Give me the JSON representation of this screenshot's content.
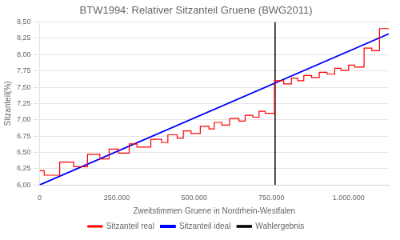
{
  "chart_data": {
    "type": "line",
    "title": "BTW1994: Relativer Sitzanteil Gruene (BWG2011)",
    "xlabel": "Zweitstimmen Gruene in Nordrhein-Westfalen",
    "ylabel": "Sitzanteil(%)",
    "xlim": [
      0,
      1130000
    ],
    "ylim": [
      6.0,
      8.5
    ],
    "xticks": [
      0,
      {
        "value": 250000,
        "label": "250.000"
      },
      {
        "value": 500000,
        "label": "500.000"
      },
      {
        "value": 750000,
        "label": "750.000"
      },
      {
        "value": 1000000,
        "label": "1.000.000"
      }
    ],
    "yticks": [
      {
        "value": 6.0,
        "label": "6,00"
      },
      {
        "value": 6.25,
        "label": "6,25"
      },
      {
        "value": 6.5,
        "label": "6,50"
      },
      {
        "value": 6.75,
        "label": "6,75"
      },
      {
        "value": 7.0,
        "label": "7,00"
      },
      {
        "value": 7.25,
        "label": "7,25"
      },
      {
        "value": 7.5,
        "label": "7,50"
      },
      {
        "value": 7.75,
        "label": "7,75"
      },
      {
        "value": 8.0,
        "label": "8,00"
      },
      {
        "value": 8.25,
        "label": "8,25"
      },
      {
        "value": 8.5,
        "label": "8,50"
      }
    ],
    "grid": "y",
    "legend": "bottom",
    "series": [
      {
        "name": "Sitzanteil real",
        "color": "red",
        "x": [
          0,
          15000,
          15000,
          65000,
          65000,
          110000,
          110000,
          155000,
          155000,
          195000,
          195000,
          225000,
          225000,
          255000,
          255000,
          290000,
          290000,
          315000,
          315000,
          360000,
          360000,
          395000,
          395000,
          415000,
          415000,
          445000,
          445000,
          465000,
          465000,
          490000,
          490000,
          520000,
          520000,
          548000,
          548000,
          565000,
          565000,
          590000,
          590000,
          615000,
          615000,
          645000,
          645000,
          665000,
          665000,
          690000,
          690000,
          710000,
          710000,
          730000,
          730000,
          760000,
          760000,
          790000,
          790000,
          815000,
          815000,
          835000,
          835000,
          855000,
          855000,
          880000,
          880000,
          905000,
          905000,
          930000,
          930000,
          955000,
          955000,
          975000,
          975000,
          1000000,
          1000000,
          1020000,
          1020000,
          1050000,
          1050000,
          1075000,
          1075000,
          1100000,
          1100000,
          1130000
        ],
        "values": [
          6.22,
          6.22,
          6.15,
          6.15,
          6.35,
          6.35,
          6.28,
          6.28,
          6.47,
          6.47,
          6.4,
          6.4,
          6.55,
          6.55,
          6.49,
          6.49,
          6.63,
          6.63,
          6.58,
          6.58,
          6.7,
          6.7,
          6.65,
          6.65,
          6.77,
          6.77,
          6.72,
          6.72,
          6.83,
          6.83,
          6.79,
          6.79,
          6.9,
          6.9,
          6.86,
          6.86,
          6.96,
          6.96,
          6.92,
          6.92,
          7.02,
          7.02,
          6.98,
          6.98,
          7.07,
          7.07,
          7.04,
          7.04,
          7.13,
          7.13,
          7.1,
          7.1,
          7.6,
          7.6,
          7.55,
          7.55,
          7.64,
          7.64,
          7.6,
          7.6,
          7.68,
          7.68,
          7.65,
          7.65,
          7.73,
          7.73,
          7.7,
          7.7,
          7.79,
          7.79,
          7.76,
          7.76,
          7.84,
          7.84,
          7.81,
          7.81,
          8.1,
          8.1,
          8.06,
          8.06,
          8.4,
          8.4
        ]
      },
      {
        "name": "Sitzanteil ideal",
        "color": "blue",
        "x": [
          0,
          1130000
        ],
        "values": [
          6.0,
          8.32
        ]
      },
      {
        "name": "Wahlergebnis",
        "color": "black",
        "type": "vline",
        "x": 762000
      }
    ]
  }
}
